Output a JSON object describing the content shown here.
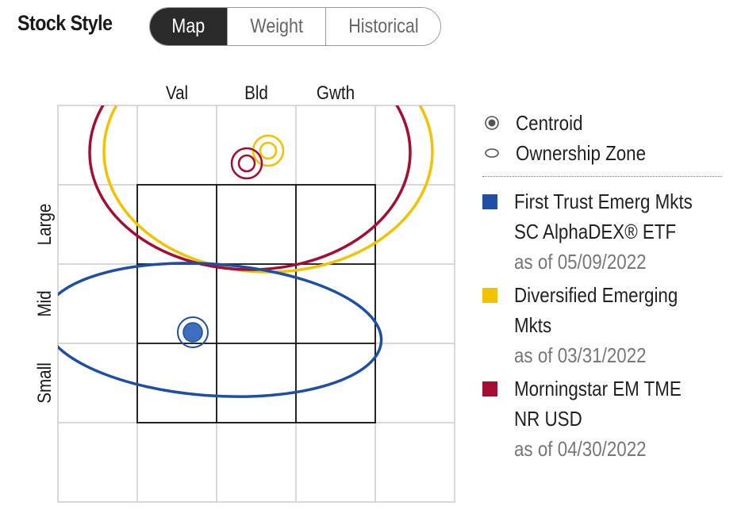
{
  "header": {
    "title": "Stock Style",
    "tabs": [
      {
        "label": "Map",
        "active": true
      },
      {
        "label": "Weight",
        "active": false
      },
      {
        "label": "Historical",
        "active": false
      }
    ]
  },
  "style_map": {
    "columns": [
      "Val",
      "Bld",
      "Gwth"
    ],
    "rows": [
      "Large",
      "Mid",
      "Small"
    ]
  },
  "legend": {
    "centroid_label": "Centroid",
    "ownership_zone_label": "Ownership Zone",
    "series": [
      {
        "name_line1": "First Trust Emerg Mkts",
        "name_line2": "SC AlphaDEX® ETF",
        "date": "as of 05/09/2022",
        "color": "#1f4fa3"
      },
      {
        "name_line1": "Diversified Emerging",
        "name_line2": "Mkts",
        "date": "as of 03/31/2022",
        "color": "#f2c200"
      },
      {
        "name_line1": "Morningstar EM TME",
        "name_line2": "NR USD",
        "date": "as of 04/30/2022",
        "color": "#a50d35"
      }
    ]
  },
  "colors": {
    "fund": "#1f4fa3",
    "category": "#f2c200",
    "index": "#a50d35",
    "grid_outer": "#cccccc",
    "grid_inner": "#111111",
    "active_tab": "#2a2a2a"
  }
}
